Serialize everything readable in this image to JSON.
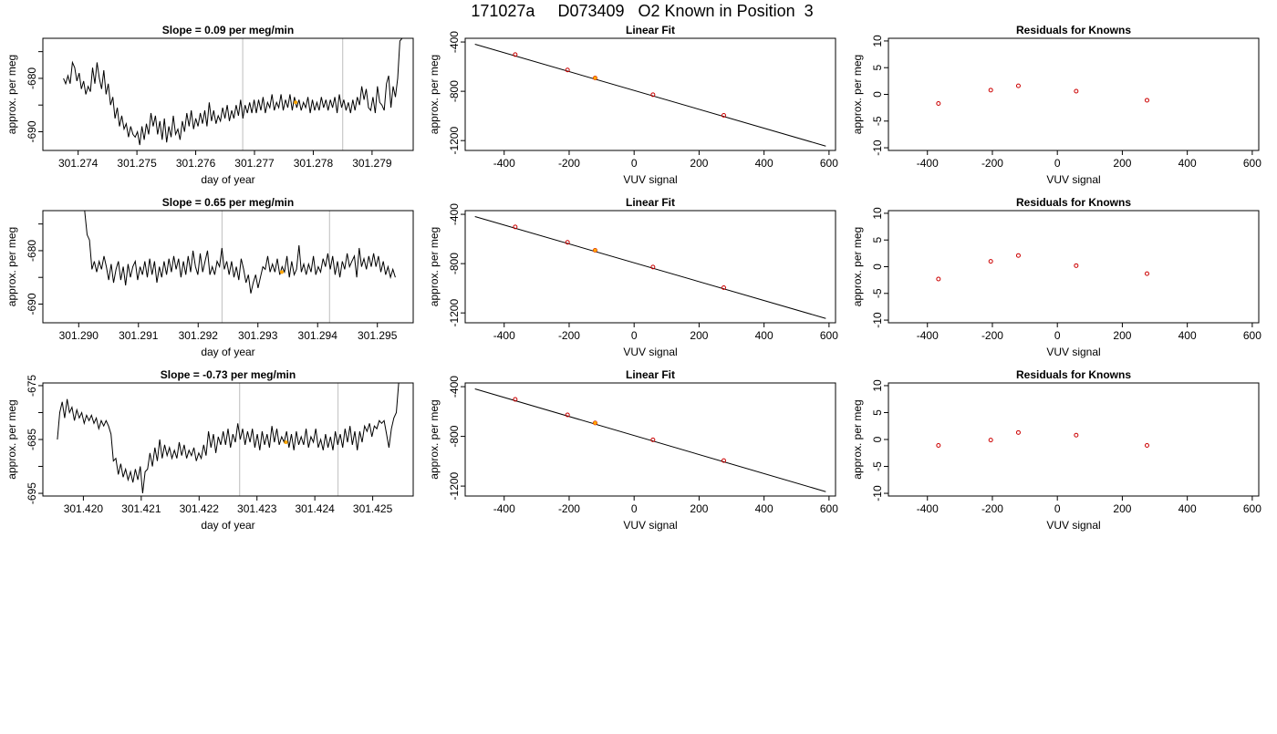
{
  "page_title": "171027a     D073409   O2 Known in Position  3",
  "chart_data": [
    {
      "type": "line",
      "panel": "slope",
      "row": 0,
      "title": "Slope =  0.09  per meg/min",
      "xlabel": "day of year",
      "ylabel": "approx. per meg",
      "xlim": [
        301.2734,
        301.2797
      ],
      "ylim": [
        -693.5,
        -672.5
      ],
      "xticks": [
        301.274,
        301.275,
        301.276,
        301.277,
        301.278,
        301.279
      ],
      "xtick_labels": [
        "301.274",
        "301.275",
        "301.276",
        "301.277",
        "301.278",
        "301.279"
      ],
      "yticks": [
        -690,
        -685,
        -680,
        -675
      ],
      "ytick_labels": [
        "-690",
        "",
        "-680",
        ""
      ],
      "vlines": [
        301.2768,
        301.2785
      ],
      "series": [
        {
          "color": "#000000",
          "x_start": 301.27375,
          "x_end": 301.27955,
          "y": [
            -680.0,
            -681.0,
            -679.5,
            -681.0,
            -677.0,
            -678.0,
            -680.5,
            -679.0,
            -682.0,
            -680.5,
            -683.0,
            -681.5,
            -682.5,
            -678.0,
            -681.0,
            -677.0,
            -680.0,
            -682.0,
            -678.5,
            -683.0,
            -681.0,
            -685.0,
            -683.5,
            -687.5,
            -685.5,
            -689.0,
            -687.0,
            -689.5,
            -688.5,
            -691.0,
            -689.0,
            -690.5,
            -691.0,
            -690.0,
            -692.5,
            -689.0,
            -691.5,
            -688.5,
            -690.5,
            -686.5,
            -689.0,
            -687.0,
            -690.5,
            -688.0,
            -691.5,
            -687.5,
            -692.0,
            -689.0,
            -691.0,
            -687.0,
            -690.5,
            -689.5,
            -691.5,
            -688.0,
            -690.0,
            -686.5,
            -689.0,
            -686.0,
            -689.5,
            -687.5,
            -689.0,
            -686.5,
            -688.5,
            -686.0,
            -689.0,
            -684.5,
            -688.0,
            -686.0,
            -688.5,
            -687.0,
            -688.0,
            -685.5,
            -687.5,
            -685.0,
            -688.0,
            -686.0,
            -687.5,
            -685.0,
            -687.0,
            -684.0,
            -687.5,
            -685.0,
            -686.5,
            -684.5,
            -686.5,
            -684.0,
            -686.5,
            -684.0,
            -686.0,
            -683.5,
            -686.5,
            -684.5,
            -685.5,
            -683.0,
            -686.0,
            -684.5,
            -685.5,
            -683.0,
            -686.0,
            -684.0,
            -685.5,
            -683.0,
            -686.0,
            -683.5,
            -685.5,
            -684.0,
            -686.0,
            -684.5,
            -685.5,
            -683.5,
            -686.5,
            -684.0,
            -686.0,
            -684.5,
            -686.0,
            -683.5,
            -685.5,
            -684.0,
            -686.0,
            -684.0,
            -685.5,
            -683.5,
            -686.5,
            -683.0,
            -685.5,
            -684.0,
            -686.0,
            -684.5,
            -686.5,
            -684.0,
            -686.0,
            -683.5,
            -685.0,
            -681.5,
            -684.0,
            -682.0,
            -685.5,
            -686.0,
            -683.5,
            -686.5,
            -681.5,
            -684.5,
            -685.0,
            -686.0,
            -681.0,
            -679.5,
            -685.5,
            -681.5,
            -683.5,
            -680.0,
            -673.0,
            -672.5,
            -672.5
          ]
        },
        {
          "color": "#ffa500",
          "x": [
            301.2777
          ],
          "y": [
            -684.5
          ]
        }
      ]
    },
    {
      "type": "scatter",
      "panel": "linear-fit",
      "row": 0,
      "title": "Linear Fit",
      "xlabel": "VUV signal",
      "ylabel": "approx. per meg",
      "xlim": [
        -520,
        620
      ],
      "ylim": [
        -1280,
        -370
      ],
      "xticks": [
        -400,
        -200,
        0,
        200,
        400,
        600
      ],
      "xtick_labels": [
        "-400",
        "-200",
        "0",
        "200",
        "400",
        "600"
      ],
      "yticks": [
        -400,
        -800,
        -1200
      ],
      "ytick_labels": [
        "-400",
        "-800",
        "-1200"
      ],
      "line": {
        "x": [
          -490,
          590
        ],
        "y": [
          -418,
          -1245
        ]
      },
      "series": [
        {
          "color": "#cc0000",
          "marker": "circle",
          "x": [
            -366,
            -205,
            -120,
            58,
            276
          ],
          "y": [
            -502,
            -627,
            -692,
            -828,
            -995
          ]
        },
        {
          "color": "#ffa500",
          "marker": "dot",
          "x": [
            -120
          ],
          "y": [
            -692
          ]
        }
      ]
    },
    {
      "type": "scatter",
      "panel": "residuals",
      "row": 0,
      "title": "Residuals for Knowns",
      "xlabel": "VUV signal",
      "ylabel": "approx. per meg",
      "xlim": [
        -520,
        620
      ],
      "ylim": [
        -10.5,
        10.5
      ],
      "xticks": [
        -400,
        -200,
        0,
        200,
        400,
        600
      ],
      "xtick_labels": [
        "-400",
        "-200",
        "0",
        "200",
        "400",
        "600"
      ],
      "yticks": [
        -10,
        -5,
        0,
        5,
        10
      ],
      "ytick_labels": [
        "-10",
        "-5",
        "0",
        "5",
        "10"
      ],
      "series": [
        {
          "color": "#cc0000",
          "marker": "circle",
          "x": [
            -366,
            -205,
            -120,
            58,
            276
          ],
          "y": [
            -1.7,
            0.8,
            1.6,
            0.6,
            -1.1
          ]
        }
      ]
    },
    {
      "type": "line",
      "panel": "slope",
      "row": 1,
      "title": "Slope =  0.65  per meg/min",
      "xlabel": "day of year",
      "ylabel": "approx. per meg",
      "xlim": [
        301.2894,
        301.2956
      ],
      "ylim": [
        -693.5,
        -672.5
      ],
      "xticks": [
        301.29,
        301.291,
        301.292,
        301.293,
        301.294,
        301.295
      ],
      "xtick_labels": [
        "301.290",
        "301.291",
        "301.292",
        "301.293",
        "301.294",
        "301.295"
      ],
      "yticks": [
        -690,
        -685,
        -680,
        -675
      ],
      "ytick_labels": [
        "-690",
        "",
        "-680",
        ""
      ],
      "vlines": [
        301.2924,
        301.2942
      ],
      "series": [
        {
          "color": "#000000",
          "x_start": 301.2901,
          "x_end": 301.2953,
          "y": [
            -672.5,
            -677.0,
            -678.0,
            -683.5,
            -682.0,
            -684.0,
            -682.0,
            -683.5,
            -681.0,
            -683.0,
            -685.5,
            -682.5,
            -686.0,
            -683.5,
            -682.0,
            -685.5,
            -683.0,
            -686.5,
            -682.5,
            -685.0,
            -683.0,
            -682.0,
            -685.5,
            -683.0,
            -684.5,
            -682.0,
            -685.0,
            -681.5,
            -684.5,
            -682.0,
            -686.0,
            -683.0,
            -685.0,
            -682.0,
            -684.5,
            -681.5,
            -684.0,
            -681.0,
            -683.5,
            -681.5,
            -685.0,
            -682.0,
            -684.5,
            -681.0,
            -684.0,
            -680.0,
            -683.0,
            -684.5,
            -680.5,
            -684.0,
            -682.0,
            -680.0,
            -684.5,
            -683.0,
            -684.5,
            -682.0,
            -683.0,
            -679.5,
            -683.5,
            -682.0,
            -684.5,
            -682.0,
            -685.0,
            -683.0,
            -685.5,
            -681.5,
            -683.5,
            -686.0,
            -684.5,
            -688.0,
            -686.0,
            -684.5,
            -687.0,
            -685.0,
            -683.0,
            -683.5,
            -681.0,
            -684.0,
            -682.5,
            -684.0,
            -681.5,
            -684.5,
            -683.0,
            -684.0,
            -681.0,
            -685.0,
            -682.0,
            -684.5,
            -683.5,
            -679.0,
            -684.0,
            -682.5,
            -684.5,
            -682.5,
            -684.0,
            -681.0,
            -684.5,
            -683.0,
            -684.0,
            -681.5,
            -683.0,
            -680.5,
            -683.5,
            -681.0,
            -684.5,
            -682.0,
            -685.0,
            -682.0,
            -683.5,
            -680.5,
            -683.0,
            -682.0,
            -681.0,
            -685.0,
            -679.5,
            -683.0,
            -681.5,
            -683.5,
            -681.0,
            -683.0,
            -680.5,
            -683.0,
            -681.0,
            -684.0,
            -682.0,
            -684.5,
            -683.0,
            -685.0,
            -683.5,
            -685.0
          ]
        },
        {
          "color": "#ffa500",
          "x": [
            301.2934
          ],
          "y": [
            -684.0
          ]
        }
      ]
    },
    {
      "type": "scatter",
      "panel": "linear-fit",
      "row": 1,
      "title": "Linear Fit",
      "xlabel": "VUV signal",
      "ylabel": "approx. per meg",
      "xlim": [
        -520,
        620
      ],
      "ylim": [
        -1280,
        -370
      ],
      "xticks": [
        -400,
        -200,
        0,
        200,
        400,
        600
      ],
      "xtick_labels": [
        "-400",
        "-200",
        "0",
        "200",
        "400",
        "600"
      ],
      "yticks": [
        -400,
        -800,
        -1200
      ],
      "ytick_labels": [
        "-400",
        "-800",
        "-1200"
      ],
      "line": {
        "x": [
          -490,
          590
        ],
        "y": [
          -418,
          -1245
        ]
      },
      "series": [
        {
          "color": "#cc0000",
          "marker": "circle",
          "x": [
            -366,
            -205,
            -120,
            58,
            276
          ],
          "y": [
            -502,
            -627,
            -692,
            -828,
            -995
          ]
        },
        {
          "color": "#ffa500",
          "marker": "dot",
          "x": [
            -120
          ],
          "y": [
            -692
          ]
        }
      ]
    },
    {
      "type": "scatter",
      "panel": "residuals",
      "row": 1,
      "title": "Residuals for Knowns",
      "xlabel": "VUV signal",
      "ylabel": "approx. per meg",
      "xlim": [
        -520,
        620
      ],
      "ylim": [
        -10.5,
        10.5
      ],
      "xticks": [
        -400,
        -200,
        0,
        200,
        400,
        600
      ],
      "xtick_labels": [
        "-400",
        "-200",
        "0",
        "200",
        "400",
        "600"
      ],
      "yticks": [
        -10,
        -5,
        0,
        5,
        10
      ],
      "ytick_labels": [
        "-10",
        "-5",
        "0",
        "5",
        "10"
      ],
      "series": [
        {
          "color": "#cc0000",
          "marker": "circle",
          "x": [
            -366,
            -205,
            -120,
            58,
            276
          ],
          "y": [
            -2.3,
            1.0,
            2.1,
            0.2,
            -1.3
          ]
        }
      ]
    },
    {
      "type": "line",
      "panel": "slope",
      "row": 2,
      "title": "Slope =  -0.73  per meg/min",
      "xlabel": "day of year",
      "ylabel": "approx. per meg",
      "xlim": [
        301.4193,
        301.4257
      ],
      "ylim": [
        -695.5,
        -674.5
      ],
      "xticks": [
        301.42,
        301.421,
        301.422,
        301.423,
        301.424,
        301.425
      ],
      "xtick_labels": [
        "301.420",
        "301.421",
        "301.422",
        "301.423",
        "301.424",
        "301.425"
      ],
      "yticks": [
        -695,
        -690,
        -685,
        -680,
        -675
      ],
      "ytick_labels": [
        "-695",
        "",
        "-685",
        "",
        "-675"
      ],
      "vlines": [
        301.4227,
        301.4244
      ],
      "series": [
        {
          "color": "#000000",
          "x_start": 301.41955,
          "x_end": 301.42545,
          "y": [
            -685.0,
            -680.0,
            -678.0,
            -681.0,
            -677.5,
            -680.0,
            -679.0,
            -681.5,
            -679.5,
            -681.0,
            -680.0,
            -682.0,
            -680.5,
            -681.5,
            -680.5,
            -682.0,
            -681.0,
            -683.0,
            -681.5,
            -682.5,
            -681.5,
            -682.5,
            -684.0,
            -689.0,
            -688.5,
            -691.5,
            -689.5,
            -692.0,
            -690.5,
            -692.5,
            -691.0,
            -693.0,
            -690.5,
            -692.5,
            -690.0,
            -695.0,
            -691.0,
            -690.5,
            -687.5,
            -690.0,
            -686.5,
            -689.0,
            -685.0,
            -688.5,
            -686.0,
            -688.0,
            -686.5,
            -688.5,
            -687.0,
            -688.5,
            -685.5,
            -688.0,
            -686.0,
            -688.5,
            -687.0,
            -688.0,
            -686.5,
            -689.0,
            -687.5,
            -688.5,
            -686.0,
            -688.0,
            -683.5,
            -686.5,
            -684.0,
            -687.5,
            -684.5,
            -686.0,
            -683.5,
            -686.0,
            -683.0,
            -686.5,
            -684.0,
            -685.5,
            -682.0,
            -685.0,
            -683.0,
            -686.0,
            -683.5,
            -685.5,
            -683.0,
            -686.5,
            -684.0,
            -687.0,
            -683.5,
            -686.0,
            -684.0,
            -686.5,
            -682.5,
            -685.5,
            -683.0,
            -686.0,
            -684.5,
            -685.5,
            -683.5,
            -686.5,
            -684.0,
            -687.0,
            -683.5,
            -686.0,
            -684.5,
            -686.0,
            -683.0,
            -686.5,
            -684.5,
            -685.5,
            -683.0,
            -686.5,
            -685.0,
            -687.0,
            -684.0,
            -686.5,
            -684.5,
            -687.0,
            -683.5,
            -686.0,
            -684.0,
            -686.5,
            -683.0,
            -685.5,
            -682.5,
            -686.0,
            -683.5,
            -687.0,
            -683.5,
            -685.5,
            -682.5,
            -683.5,
            -682.0,
            -684.5,
            -682.5,
            -683.0,
            -681.5,
            -682.0,
            -681.5,
            -684.0,
            -686.5,
            -683.0,
            -681.0,
            -680.0,
            -674.5
          ]
        },
        {
          "color": "#ffa500",
          "x": [
            301.4235
          ],
          "y": [
            -685.5
          ]
        }
      ]
    },
    {
      "type": "scatter",
      "panel": "linear-fit",
      "row": 2,
      "title": "Linear Fit",
      "xlabel": "VUV signal",
      "ylabel": "approx. per meg",
      "xlim": [
        -520,
        620
      ],
      "ylim": [
        -1280,
        -370
      ],
      "xticks": [
        -400,
        -200,
        0,
        200,
        400,
        600
      ],
      "xtick_labels": [
        "-400",
        "-200",
        "0",
        "200",
        "400",
        "600"
      ],
      "yticks": [
        -400,
        -800,
        -1200
      ],
      "ytick_labels": [
        "-400",
        "-800",
        "-1200"
      ],
      "line": {
        "x": [
          -490,
          590
        ],
        "y": [
          -418,
          -1245
        ]
      },
      "series": [
        {
          "color": "#cc0000",
          "marker": "circle",
          "x": [
            -366,
            -205,
            -120,
            58,
            276
          ],
          "y": [
            -502,
            -627,
            -692,
            -828,
            -995
          ]
        },
        {
          "color": "#ffa500",
          "marker": "dot",
          "x": [
            -120
          ],
          "y": [
            -692
          ]
        }
      ]
    },
    {
      "type": "scatter",
      "panel": "residuals",
      "row": 2,
      "title": "Residuals for Knowns",
      "xlabel": "VUV signal",
      "ylabel": "approx. per meg",
      "xlim": [
        -520,
        620
      ],
      "ylim": [
        -10.5,
        10.5
      ],
      "xticks": [
        -400,
        -200,
        0,
        200,
        400,
        600
      ],
      "xtick_labels": [
        "-400",
        "-200",
        "0",
        "200",
        "400",
        "600"
      ],
      "yticks": [
        -10,
        -5,
        0,
        5,
        10
      ],
      "ytick_labels": [
        "-10",
        "-5",
        "0",
        "5",
        "10"
      ],
      "series": [
        {
          "color": "#cc0000",
          "marker": "circle",
          "x": [
            -366,
            -205,
            -120,
            58,
            276
          ],
          "y": [
            -1.1,
            -0.1,
            1.3,
            0.8,
            -1.1
          ]
        }
      ]
    }
  ]
}
